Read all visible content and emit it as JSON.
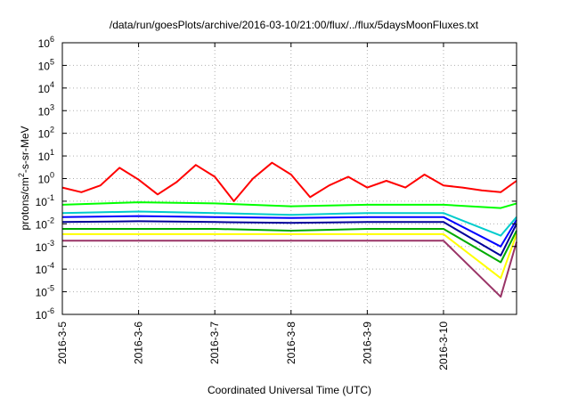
{
  "chart_data": {
    "type": "line",
    "title": "/data/run/goesPlots/archive/2016-03-10/21:00/flux/../flux/5daysMoonFluxes.txt",
    "xlabel": "Coordinated Universal Time (UTC)",
    "ylabel": "protons/cm²-s-sr-MeV",
    "ylabel_parts": {
      "pre": "protons/cm",
      "sup": "2",
      "post": "-s-sr-MeV"
    },
    "y_scale": "log",
    "ylim": [
      1e-06,
      1000000.0
    ],
    "y_tick_exponents": [
      -6,
      -5,
      -4,
      -3,
      -2,
      -1,
      0,
      1,
      2,
      3,
      4,
      5,
      6
    ],
    "y_tick_base": "10",
    "xlim": [
      "2016-03-05 00:00",
      "2016-03-10 23:00"
    ],
    "x_ticks": [
      "2016-3-5",
      "2016-3-6",
      "2016-3-7",
      "2016-3-8",
      "2016-3-9",
      "2016-3-10"
    ],
    "grid": true,
    "legend": "none",
    "series": [
      {
        "color": "#ff0000",
        "x": [
          "2016-03-05 00:00",
          "2016-03-05 06:00",
          "2016-03-05 12:00",
          "2016-03-05 18:00",
          "2016-03-06 00:00",
          "2016-03-06 06:00",
          "2016-03-06 12:00",
          "2016-03-06 18:00",
          "2016-03-07 00:00",
          "2016-03-07 06:00",
          "2016-03-07 12:00",
          "2016-03-07 18:00",
          "2016-03-08 00:00",
          "2016-03-08 06:00",
          "2016-03-08 12:00",
          "2016-03-08 18:00",
          "2016-03-09 00:00",
          "2016-03-09 06:00",
          "2016-03-09 12:00",
          "2016-03-09 18:00",
          "2016-03-10 00:00",
          "2016-03-10 06:00",
          "2016-03-10 12:00",
          "2016-03-10 18:00",
          "2016-03-10 23:00"
        ],
        "y": [
          0.4,
          0.25,
          0.5,
          3,
          0.9,
          0.2,
          0.7,
          4,
          1.2,
          0.1,
          1,
          5,
          1.5,
          0.15,
          0.5,
          1.2,
          0.4,
          0.8,
          0.4,
          1.5,
          0.5,
          0.4,
          0.3,
          0.25,
          0.8
        ]
      },
      {
        "color": "#00ff00",
        "x": [
          "2016-03-05 00:00",
          "2016-03-06 00:00",
          "2016-03-07 00:00",
          "2016-03-08 00:00",
          "2016-03-09 00:00",
          "2016-03-10 00:00",
          "2016-03-10 18:00",
          "2016-03-10 23:00"
        ],
        "y": [
          0.07,
          0.09,
          0.08,
          0.06,
          0.07,
          0.07,
          0.05,
          0.08
        ]
      },
      {
        "color": "#00cccc",
        "x": [
          "2016-03-05 00:00",
          "2016-03-06 00:00",
          "2016-03-07 00:00",
          "2016-03-08 00:00",
          "2016-03-09 00:00",
          "2016-03-10 00:00",
          "2016-03-10 18:00",
          "2016-03-10 23:00"
        ],
        "y": [
          0.03,
          0.035,
          0.03,
          0.025,
          0.03,
          0.03,
          0.003,
          0.02
        ]
      },
      {
        "color": "#0000ff",
        "x": [
          "2016-03-05 00:00",
          "2016-03-06 00:00",
          "2016-03-07 00:00",
          "2016-03-08 00:00",
          "2016-03-09 00:00",
          "2016-03-10 00:00",
          "2016-03-10 18:00",
          "2016-03-10 23:00"
        ],
        "y": [
          0.02,
          0.022,
          0.02,
          0.018,
          0.02,
          0.02,
          0.001,
          0.015
        ]
      },
      {
        "color": "#000099",
        "x": [
          "2016-03-05 00:00",
          "2016-03-06 00:00",
          "2016-03-07 00:00",
          "2016-03-08 00:00",
          "2016-03-09 00:00",
          "2016-03-10 00:00",
          "2016-03-10 18:00",
          "2016-03-10 23:00"
        ],
        "y": [
          0.012,
          0.013,
          0.012,
          0.011,
          0.012,
          0.012,
          0.0004,
          0.01
        ]
      },
      {
        "color": "#00aa00",
        "x": [
          "2016-03-05 00:00",
          "2016-03-06 00:00",
          "2016-03-07 00:00",
          "2016-03-08 00:00",
          "2016-03-09 00:00",
          "2016-03-10 00:00",
          "2016-03-10 18:00",
          "2016-03-10 23:00"
        ],
        "y": [
          0.006,
          0.006,
          0.006,
          0.005,
          0.006,
          0.006,
          0.0002,
          0.005
        ]
      },
      {
        "color": "#ffff00",
        "x": [
          "2016-03-05 00:00",
          "2016-03-06 00:00",
          "2016-03-07 00:00",
          "2016-03-08 00:00",
          "2016-03-09 00:00",
          "2016-03-10 00:00",
          "2016-03-10 18:00",
          "2016-03-10 23:00"
        ],
        "y": [
          0.0035,
          0.0035,
          0.0035,
          0.0035,
          0.0035,
          0.0035,
          4e-05,
          0.0035
        ]
      },
      {
        "color": "#993366",
        "x": [
          "2016-03-05 00:00",
          "2016-03-06 00:00",
          "2016-03-07 00:00",
          "2016-03-08 00:00",
          "2016-03-09 00:00",
          "2016-03-10 00:00",
          "2016-03-10 18:00",
          "2016-03-10 23:00"
        ],
        "y": [
          0.0018,
          0.0018,
          0.0018,
          0.0018,
          0.0018,
          0.0018,
          6e-06,
          0.0016
        ]
      }
    ]
  }
}
